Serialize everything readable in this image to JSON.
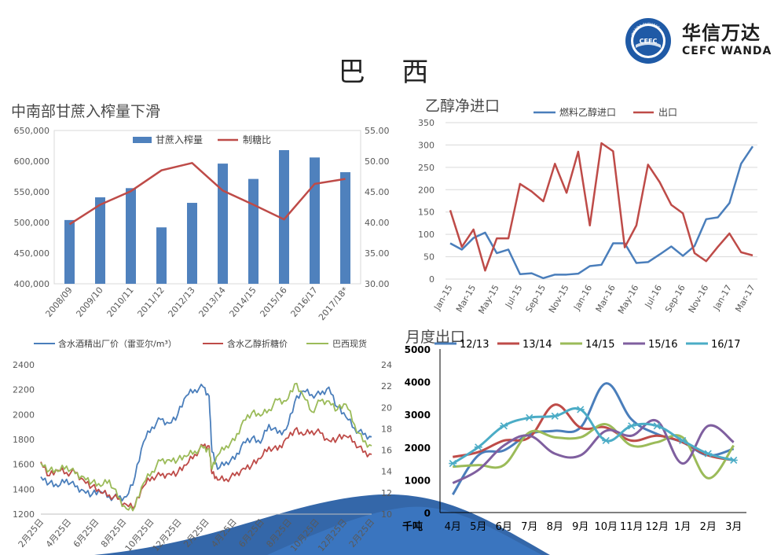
{
  "page": {
    "title": "巴 西",
    "logo_cn": "华信万达",
    "logo_en": "CEFC WANDA",
    "logo_ring_text": "WANDA FUTURES",
    "logo_badge": "CEFC"
  },
  "colors": {
    "blue": "#4a7ebb",
    "red": "#be4b48",
    "green": "#9bbb59",
    "purple": "#7f5f9f",
    "teal": "#4bacc6",
    "bar": "#4f81bd"
  },
  "chart_data": [
    {
      "id": "crush",
      "type": "bar",
      "title": "中南部甘蔗入榨量下滑",
      "categories": [
        "2008/09",
        "2009/10",
        "2010/11",
        "2011/12",
        "2012/13",
        "2013/14",
        "2014/15",
        "2015/16",
        "2016/17",
        "2017/18*"
      ],
      "series": [
        {
          "name": "甘蔗入榨量",
          "type": "bar",
          "axis": "left",
          "values": [
            504000,
            541000,
            556000,
            492000,
            532000,
            596000,
            571000,
            618000,
            606000,
            582000
          ]
        },
        {
          "name": "制糖比",
          "type": "line",
          "axis": "right",
          "values": [
            39.7,
            42.9,
            45.1,
            48.5,
            49.7,
            45.2,
            42.9,
            40.5,
            46.3,
            47.1
          ]
        }
      ],
      "left_ticks": [
        "400,000",
        "450,000",
        "500,000",
        "550,000",
        "600,000",
        "650,000"
      ],
      "right_ticks": [
        "30.00",
        "35.00",
        "40.00",
        "45.00",
        "50.00",
        "55.00"
      ],
      "ylim_left": [
        400000,
        650000
      ],
      "ylim_right": [
        30,
        55
      ],
      "legend": "top-center"
    },
    {
      "id": "ethanol",
      "type": "line",
      "title": "乙醇净进口",
      "x": [
        "Jan-15",
        "Feb-15",
        "Mar-15",
        "Apr-15",
        "May-15",
        "Jun-15",
        "Jul-15",
        "Aug-15",
        "Sep-15",
        "Oct-15",
        "Nov-15",
        "Dec-15",
        "Jan-16",
        "Feb-16",
        "Mar-16",
        "Apr-16",
        "May-16",
        "Jun-16",
        "Jul-16",
        "Aug-16",
        "Sep-16",
        "Oct-16",
        "Nov-16",
        "Dec-16",
        "Jan-17",
        "Feb-17",
        "Mar-17"
      ],
      "x_ticks": [
        "Jan-15",
        "Mar-15",
        "May-15",
        "Jul-15",
        "Sep-15",
        "Nov-15",
        "Jan-16",
        "Mar-16",
        "May-16",
        "Jul-16",
        "Sep-16",
        "Nov-16",
        "Jan-17",
        "Mar-17"
      ],
      "series": [
        {
          "name": "燃料乙醇进口",
          "values": [
            80,
            66,
            92,
            104,
            58,
            66,
            11,
            13,
            2,
            10,
            10,
            12,
            29,
            32,
            80,
            80,
            36,
            38,
            55,
            73,
            52,
            74,
            134,
            138,
            170,
            258,
            297
          ]
        },
        {
          "name": "出口",
          "values": [
            154,
            72,
            111,
            19,
            91,
            91,
            213,
            196,
            174,
            258,
            193,
            285,
            120,
            304,
            286,
            71,
            120,
            256,
            217,
            166,
            147,
            58,
            40,
            72,
            102,
            60,
            53
          ]
        }
      ],
      "y_ticks": [
        "0",
        "50",
        "100",
        "150",
        "200",
        "250",
        "300",
        "350"
      ],
      "ylim": [
        0,
        350
      ],
      "legend": "top"
    },
    {
      "id": "prices",
      "type": "line",
      "x_ticks": [
        "2月25日",
        "4月25日",
        "6月25日",
        "8月25日",
        "10月25日",
        "12月25日",
        "2月25日",
        "4月25日",
        "6月25日",
        "8月25日",
        "10月25日",
        "12月25日",
        "2月25日"
      ],
      "series": [
        {
          "name": "含水酒精出厂价（雷亚尔/m³）",
          "axis": "left",
          "points": [
            [
              0,
              1500
            ],
            [
              3,
              1450
            ],
            [
              6,
              1420
            ],
            [
              9,
              1480
            ],
            [
              12,
              1420
            ],
            [
              15,
              1390
            ],
            [
              18,
              1360
            ],
            [
              21,
              1380
            ],
            [
              24,
              1340
            ],
            [
              27,
              1330
            ],
            [
              30,
              1340
            ],
            [
              33,
              1500
            ],
            [
              36,
              1780
            ],
            [
              39,
              1900
            ],
            [
              42,
              1960
            ],
            [
              45,
              1930
            ],
            [
              48,
              2000
            ],
            [
              51,
              2150
            ],
            [
              54,
              2200
            ],
            [
              57,
              2220
            ],
            [
              59,
              2150
            ],
            [
              60,
              1700
            ],
            [
              62,
              1560
            ],
            [
              65,
              1620
            ],
            [
              68,
              1640
            ],
            [
              71,
              1780
            ],
            [
              74,
              1810
            ],
            [
              77,
              1770
            ],
            [
              80,
              1920
            ],
            [
              83,
              1850
            ],
            [
              86,
              1880
            ],
            [
              89,
              2100
            ],
            [
              92,
              2190
            ],
            [
              95,
              2160
            ],
            [
              98,
              2160
            ],
            [
              101,
              2220
            ],
            [
              104,
              2060
            ],
            [
              107,
              1980
            ],
            [
              110,
              1890
            ],
            [
              113,
              1840
            ],
            [
              116,
              1820
            ]
          ]
        },
        {
          "name": "含水乙醇折糖价",
          "axis": "right",
          "points": [
            [
              0,
              14.9
            ],
            [
              3,
              13.6
            ],
            [
              6,
              14.1
            ],
            [
              9,
              13.9
            ],
            [
              12,
              13.9
            ],
            [
              15,
              13.2
            ],
            [
              18,
              12.6
            ],
            [
              21,
              12.0
            ],
            [
              24,
              11.8
            ],
            [
              27,
              11.4
            ],
            [
              30,
              10.9
            ],
            [
              33,
              10.8
            ],
            [
              36,
              12.6
            ],
            [
              39,
              13.5
            ],
            [
              42,
              13.6
            ],
            [
              45,
              13.8
            ],
            [
              48,
              13.9
            ],
            [
              51,
              14.6
            ],
            [
              54,
              15.6
            ],
            [
              57,
              16.4
            ],
            [
              59,
              16.4
            ],
            [
              60,
              13.8
            ],
            [
              62,
              13.2
            ],
            [
              65,
              13.3
            ],
            [
              68,
              13.6
            ],
            [
              71,
              14.3
            ],
            [
              74,
              14.6
            ],
            [
              77,
              15.2
            ],
            [
              80,
              16.3
            ],
            [
              83,
              16.0
            ],
            [
              86,
              17.1
            ],
            [
              89,
              17.9
            ],
            [
              92,
              17.4
            ],
            [
              95,
              17.8
            ],
            [
              98,
              17.6
            ],
            [
              101,
              16.9
            ],
            [
              104,
              17.1
            ],
            [
              107,
              17.3
            ],
            [
              110,
              16.8
            ],
            [
              113,
              15.8
            ],
            [
              116,
              15.6
            ]
          ]
        },
        {
          "name": "巴西现货",
          "axis": "right",
          "points": [
            [
              0,
              14.8
            ],
            [
              3,
              14.1
            ],
            [
              6,
              14.0
            ],
            [
              9,
              14.5
            ],
            [
              12,
              13.8
            ],
            [
              15,
              13.5
            ],
            [
              18,
              13.0
            ],
            [
              21,
              12.6
            ],
            [
              24,
              13.2
            ],
            [
              27,
              11.6
            ],
            [
              30,
              10.5
            ],
            [
              33,
              10.7
            ],
            [
              36,
              12.9
            ],
            [
              39,
              14.0
            ],
            [
              42,
              15.0
            ],
            [
              45,
              15.1
            ],
            [
              48,
              15.1
            ],
            [
              51,
              15.4
            ],
            [
              54,
              15.9
            ],
            [
              57,
              16.2
            ],
            [
              59,
              16.1
            ],
            [
              60,
              14.2
            ],
            [
              62,
              15.5
            ],
            [
              65,
              16.4
            ],
            [
              68,
              16.9
            ],
            [
              71,
              18.8
            ],
            [
              74,
              19.5
            ],
            [
              77,
              19.2
            ],
            [
              80,
              19.8
            ],
            [
              83,
              20.7
            ],
            [
              86,
              20.6
            ],
            [
              89,
              22.2
            ],
            [
              92,
              21.1
            ],
            [
              95,
              19.6
            ],
            [
              98,
              20.6
            ],
            [
              101,
              20.6
            ],
            [
              104,
              19.8
            ],
            [
              107,
              20.3
            ],
            [
              110,
              18.4
            ],
            [
              113,
              16.8
            ],
            [
              116,
              16.4
            ]
          ]
        }
      ],
      "left_ticks": [
        "1200",
        "1400",
        "1600",
        "1800",
        "2000",
        "2200",
        "2400"
      ],
      "right_ticks": [
        "10",
        "12",
        "14",
        "16",
        "18",
        "20",
        "22",
        "24"
      ],
      "ylim_left": [
        1200,
        2400
      ],
      "ylim_right": [
        10,
        24
      ],
      "legend": "top"
    },
    {
      "id": "monthly",
      "type": "line",
      "title": "月度出口",
      "ylabel": "千吨",
      "categories": [
        "4月",
        "5月",
        "6月",
        "7月",
        "8月",
        "9月",
        "10月",
        "11月",
        "12月",
        "1月",
        "2月",
        "3月"
      ],
      "series": [
        {
          "name": "12/13",
          "values": [
            550,
            1750,
            1900,
            2400,
            2500,
            2600,
            3950,
            2850,
            2400,
            2150,
            1750,
            1950
          ]
        },
        {
          "name": "13/14",
          "values": [
            1700,
            1850,
            2200,
            2300,
            3300,
            2600,
            2600,
            2200,
            2350,
            2150,
            1750,
            1600
          ]
        },
        {
          "name": "14/15",
          "values": [
            1400,
            1450,
            1450,
            2450,
            2300,
            2300,
            2700,
            2050,
            2150,
            2300,
            1050,
            2050
          ]
        },
        {
          "name": "15/16",
          "values": [
            900,
            1300,
            2050,
            2350,
            1800,
            1750,
            2500,
            2350,
            2800,
            1500,
            2650,
            2150
          ]
        },
        {
          "name": "16/17",
          "values": [
            1500,
            2000,
            2650,
            2900,
            2950,
            3150,
            2200,
            2650,
            2650,
            2200,
            1800,
            1600
          ]
        }
      ],
      "y_ticks": [
        "0",
        "1000",
        "2000",
        "3000",
        "4000",
        "5000"
      ],
      "ylim": [
        0,
        5000
      ],
      "legend": "top"
    }
  ]
}
